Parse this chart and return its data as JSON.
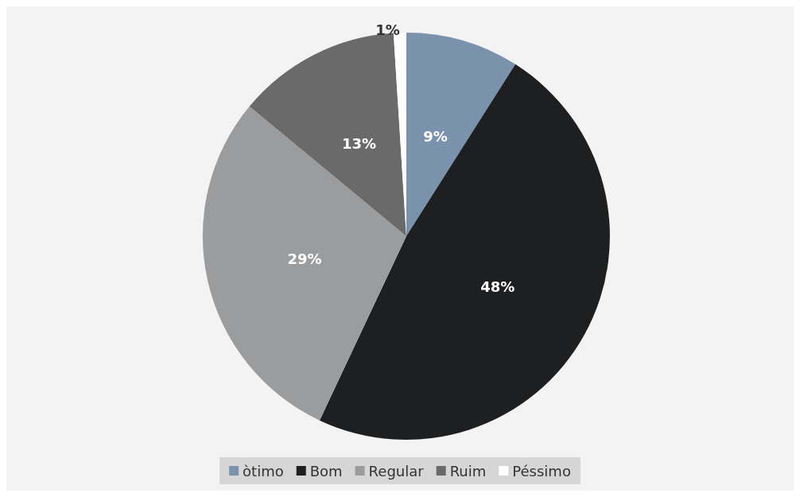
{
  "chart_data": {
    "type": "pie",
    "categories": [
      "òtimo",
      "Bom",
      "Regular",
      "Ruim",
      "Péssimo"
    ],
    "values": [
      9,
      48,
      29,
      13,
      1
    ],
    "colors": [
      "#7b92ad",
      "#1d1f21",
      "#9b9c9d",
      "#6a6a6b",
      "#ffffff"
    ],
    "value_labels": [
      "9%",
      "48%",
      "29%",
      "13%",
      "1%"
    ],
    "legend": "bottom"
  }
}
